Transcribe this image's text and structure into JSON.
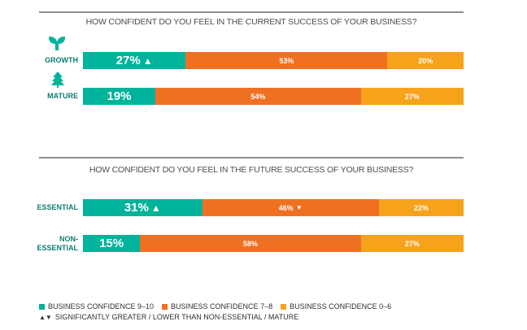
{
  "colors": {
    "high": "#00b39a",
    "mid": "#f07022",
    "low": "#f7a21b",
    "label": "#0d7d6e"
  },
  "chart_data": [
    {
      "type": "bar",
      "stacked": true,
      "orientation": "horizontal",
      "title": "HOW CONFIDENT DO YOU FEEL IN THE CURRENT SUCCESS OF YOUR BUSINESS?",
      "categories": [
        "GROWTH",
        "MATURE"
      ],
      "series": [
        {
          "name": "BUSINESS CONFIDENCE 9–10",
          "values": [
            27,
            19
          ],
          "labels": [
            "27%",
            "19%"
          ],
          "markers": [
            "up",
            ""
          ]
        },
        {
          "name": "BUSINESS CONFIDENCE 7–8",
          "values": [
            53,
            54
          ],
          "labels": [
            "53%",
            "54%"
          ],
          "markers": [
            "",
            ""
          ]
        },
        {
          "name": "BUSINESS CONFIDENCE 0–6",
          "values": [
            20,
            27
          ],
          "labels": [
            "20%",
            "27%"
          ],
          "markers": [
            "",
            ""
          ]
        }
      ]
    },
    {
      "type": "bar",
      "stacked": true,
      "orientation": "horizontal",
      "title": "HOW CONFIDENT DO YOU FEEL IN THE FUTURE SUCCESS OF YOUR BUSINESS?",
      "categories": [
        "ESSENTIAL",
        "NON-ESSENTIAL"
      ],
      "series": [
        {
          "name": "BUSINESS CONFIDENCE 9–10",
          "values": [
            31,
            15
          ],
          "labels": [
            "31%",
            "15%"
          ],
          "markers": [
            "up",
            ""
          ]
        },
        {
          "name": "BUSINESS CONFIDENCE 7–8",
          "values": [
            46,
            58
          ],
          "labels": [
            "46%",
            "58%"
          ],
          "markers": [
            "down",
            ""
          ]
        },
        {
          "name": "BUSINESS CONFIDENCE 0–6",
          "values": [
            22,
            27
          ],
          "labels": [
            "22%",
            "27%"
          ],
          "markers": [
            "",
            ""
          ]
        }
      ]
    }
  ],
  "legend": {
    "items": [
      "BUSINESS CONFIDENCE 9–10",
      "BUSINESS CONFIDENCE 7–8",
      "BUSINESS CONFIDENCE 0–6"
    ],
    "note": "SIGNIFICANTLY GREATER / LOWER THAN NON-ESSENTIAL / MATURE",
    "note_symbols": "▲▼"
  },
  "labels": {
    "GROWTH": "GROWTH",
    "MATURE": "MATURE",
    "ESSENTIAL": "ESSENTIAL",
    "NON1": "NON-",
    "NON2": "ESSENTIAL"
  }
}
